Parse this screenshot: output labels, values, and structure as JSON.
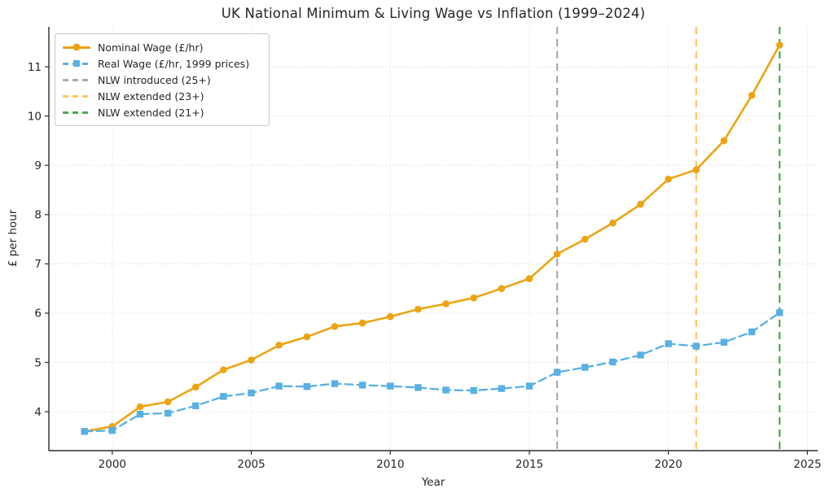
{
  "chart_data": {
    "type": "line",
    "title": "UK National Minimum & Living Wage vs Inflation (1999–2024)",
    "xlabel": "Year",
    "ylabel": "£ per hour",
    "x": [
      1999,
      2000,
      2001,
      2002,
      2003,
      2004,
      2005,
      2006,
      2007,
      2008,
      2009,
      2010,
      2011,
      2012,
      2013,
      2014,
      2015,
      2016,
      2017,
      2018,
      2019,
      2020,
      2021,
      2022,
      2023,
      2024
    ],
    "series": [
      {
        "name": "Nominal Wage (£/hr)",
        "color": "#ECA413",
        "style": "solid",
        "marker": "circle",
        "values": [
          3.6,
          3.7,
          4.1,
          4.2,
          4.5,
          4.85,
          5.05,
          5.35,
          5.52,
          5.73,
          5.8,
          5.93,
          6.08,
          6.19,
          6.31,
          6.5,
          6.7,
          7.2,
          7.5,
          7.83,
          8.21,
          8.72,
          8.91,
          9.5,
          10.42,
          11.44
        ]
      },
      {
        "name": "Real Wage (£/hr, 1999 prices)",
        "color": "#58B0E3",
        "style": "dashed",
        "marker": "square",
        "values": [
          3.6,
          3.62,
          3.95,
          3.97,
          4.12,
          4.31,
          4.38,
          4.52,
          4.51,
          4.57,
          4.54,
          4.52,
          4.49,
          4.44,
          4.43,
          4.47,
          4.52,
          4.8,
          4.9,
          5.01,
          5.15,
          5.38,
          5.33,
          5.41,
          5.62,
          6.01
        ]
      }
    ],
    "events": [
      {
        "year": 2016,
        "label": "NLW introduced (25+)",
        "color": "#ABABAB"
      },
      {
        "year": 2021,
        "label": "NLW extended (23+)",
        "color": "#FFC55F"
      },
      {
        "year": 2024,
        "label": "NLW extended (21+)",
        "color": "#4FA74F"
      }
    ],
    "xticks": [
      2000,
      2005,
      2010,
      2015,
      2020,
      2025
    ],
    "yticks": [
      4,
      5,
      6,
      7,
      8,
      9,
      10,
      11
    ],
    "xlim": [
      1997.72,
      2025.37
    ],
    "ylim": [
      3.21,
      11.81
    ],
    "grid": true,
    "legend_position": "upper-left",
    "colors": {
      "grid": "#dcdcdc",
      "spine": "#2b2b2b",
      "text": "#262626"
    }
  }
}
